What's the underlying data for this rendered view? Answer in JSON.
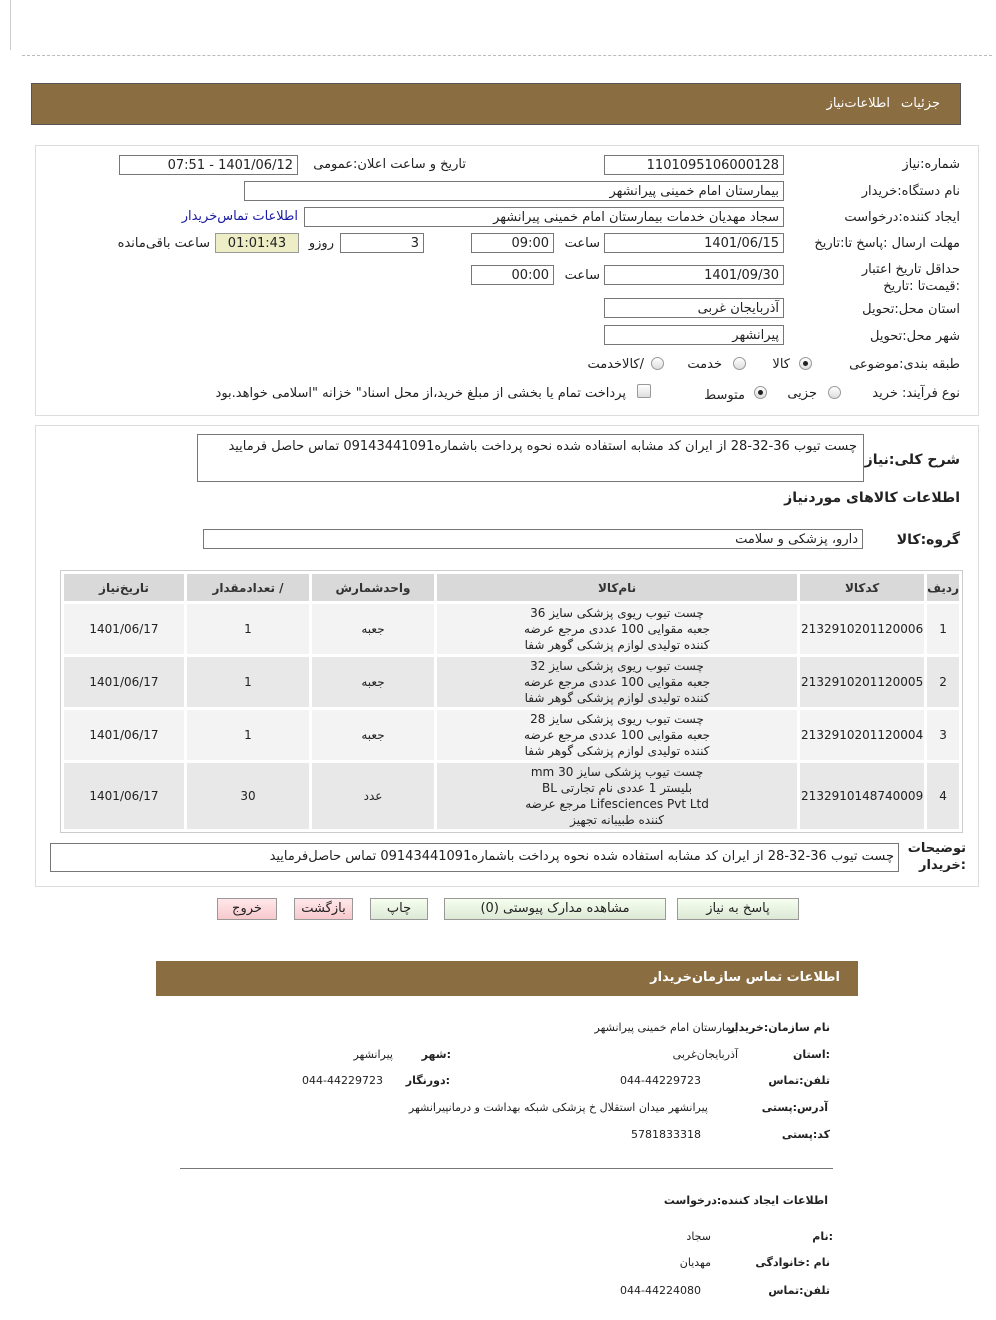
{
  "header": {
    "tab_details": "جزئیات",
    "tab_info": "اطلاعات‌نیاز"
  },
  "form": {
    "need_number_label": "شماره:نیاز",
    "need_number": "1101095106000128",
    "announce_label": "تاریخ و ساعت اعلان:عمومی",
    "announce_value": "1401/06/12 - 07:51",
    "buyer_label": "نام دستگاه:خریدار",
    "buyer_value": "بیمارستان امام خمینی پیرانشهر",
    "creator_label": "ایجاد کننده:درخواست",
    "creator_value": "سجاد مهدیان خدمات بیمارستان امام خمینی پیرانشهر",
    "contact_link": "اطلاعات تماس‌خریدار",
    "deadline_label": "مهلت ارسال :پاسخ تا:تاریخ",
    "deadline_date": "1401/06/15",
    "time_label": "ساعت",
    "deadline_time": "09:00",
    "days": "3",
    "days_label": "روزو",
    "remaining": "01:01:43",
    "remaining_label": "ساعت باقی‌مانده",
    "validity_label": "حداقل تاریخ اعتبار :قیمت‌تا :تاریخ",
    "validity_date": "1401/09/30",
    "validity_time": "00:00",
    "province_label": "استان محل:تحویل",
    "province_value": "آذربایجان غربی",
    "city_label": "شهر محل:تحویل",
    "city_value": "پیرانشهر",
    "category_label": "طبقه بندی:موضوعی",
    "cat_goods": "کالا",
    "cat_service": "خدمت",
    "cat_both": "/کالاخدمت",
    "category_selected": "کالا",
    "process_label": "نوع فرآیند: خرید",
    "proc_minor": "جزیی",
    "proc_medium": "متوسط",
    "process_selected": "متوسط",
    "treasury_text": "پرداخت تمام یا بخشی از مبلغ خرید،از محل اسناد\" خزانه \"اسلامی خواهد.بود",
    "treasury_checked": false
  },
  "details": {
    "desc_label": "شرح کلی:نیاز",
    "desc_value": "چست تیوب 36-32-28 از ایران کد مشابه استفاده شده نحوه پرداخت باشماره09143441091 تماس حاصل فرمایید",
    "goods_title": "اطلاعات کالاهای موردنیاز",
    "group_label": "گروه:کالا",
    "group_value": "دارو، پزشکی و سلامت",
    "table": {
      "headers": [
        "ردیف",
        "کدکالا",
        "نام‌کالا",
        "واحدشمارش",
        "/ تعدادمقدار",
        "تاریخ‌نیاز"
      ],
      "rows": [
        [
          "1",
          "2132910201120006",
          "چست تیوب ریوی پزشکی سایز 36 جعبه مقوایی 100 عددی مرجع عرضه کننده تولیدی لوازم پزشکی گوهر شفا",
          "جعبه",
          "1",
          "1401/06/17"
        ],
        [
          "2",
          "2132910201120005",
          "چست تیوب ریوی پزشکی سایز 32 جعبه مقوایی 100 عددی مرجع عرضه کننده تولیدی لوازم پزشکی گوهر شفا",
          "جعبه",
          "1",
          "1401/06/17"
        ],
        [
          "3",
          "2132910201120004",
          "چست تیوب ریوی پزشکی سایز 28 جعبه مقوایی 100 عددی مرجع عرضه کننده تولیدی لوازم پزشکی گوهر شفا",
          "جعبه",
          "1",
          "1401/06/17"
        ],
        [
          "4",
          "2132910148740009",
          "چست تیوب پزشکی سایز 30 mm بلیستر 1 عددی نام تجارتی BL Lifesciences Pvt Ltd مرجع عرضه کننده طبیبانه تجهیز",
          "عدد",
          "30",
          "1401/06/17"
        ]
      ]
    },
    "notes_label": "توضیحات :خریدار",
    "notes_value": "چست تیوب 36-32-28 از ایران کد مشابه استفاده شده نحوه پرداخت باشماره09143441091 تماس حاصل‌فرمایید"
  },
  "buttons": {
    "reply": "پاسخ به نیاز",
    "docs": "مشاهده مدارک پیوستی (0)",
    "print": "چاپ",
    "back": "بازگشت",
    "exit": "خروج"
  },
  "contact": {
    "title": "اطلاعات  تماس سازمان‌خریدار",
    "org_label": "نام سازمان:خریدار",
    "org_value": "بیمارستان امام خمینی پیرانشهر",
    "province_label": ":استان",
    "province_value": "آذربایجان‌غربی",
    "city_label": ":شهر",
    "city_value": "پیرانشهر",
    "phone_label": "تلفن:تماس",
    "phone_value": "044-44229723",
    "fax_label": ":دورنگار",
    "fax_value": "044-44229723",
    "address_label": "آدرس:پستی",
    "address_value": "پیرانشهر میدان استقلال خ پزشکی شبکه بهداشت و درمانپیرانشهر",
    "postal_label": "کد:پستی",
    "postal_value": "5781833318",
    "creator_title": "اطلاعات ایجاد کننده:درخواست",
    "name_label": ":نام",
    "name_value": "سجاد",
    "family_label": "نام :خانوادگی",
    "family_value": "مهدیان",
    "cphone_label": "تلفن:تماس",
    "cphone_value": "044-44224080"
  },
  "colors": {
    "brand_bar": "#8b6d42",
    "remaining_bg": "#eeeec6",
    "link": "#1a1aa6"
  }
}
